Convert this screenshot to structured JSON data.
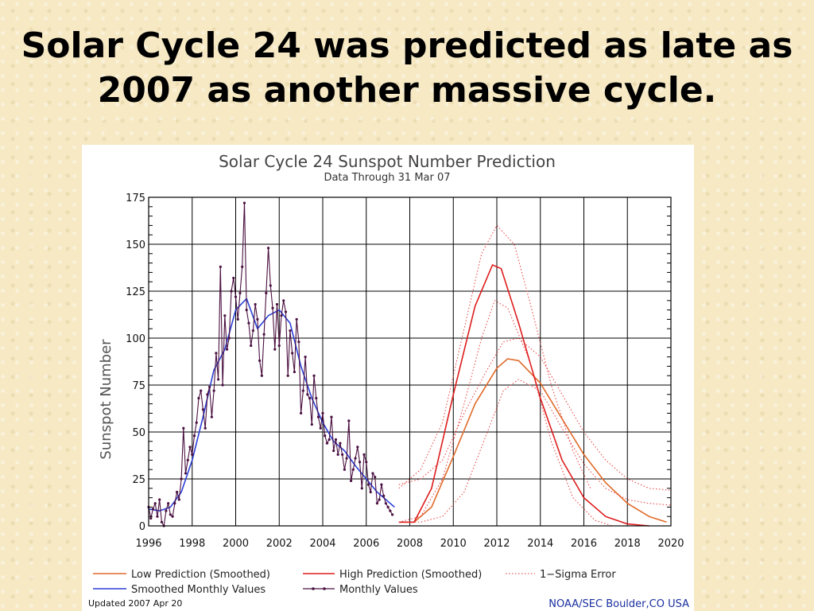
{
  "slide": {
    "title_line1": "Solar Cycle 24 was predicted as late as",
    "title_line2": "2007 as another massive cycle."
  },
  "chart_data": {
    "type": "line",
    "title": "Solar Cycle 24 Sunspot Number Prediction",
    "subtitle": "Data Through 31 Mar 07",
    "xlabel": "",
    "ylabel": "Sunspot Number",
    "xlim": [
      1996,
      2020
    ],
    "ylim": [
      0,
      175
    ],
    "x_ticks": [
      1996,
      1998,
      2000,
      2002,
      2004,
      2006,
      2008,
      2010,
      2012,
      2014,
      2016,
      2018,
      2020
    ],
    "y_ticks": [
      0,
      25,
      50,
      75,
      100,
      125,
      150,
      175
    ],
    "grid": true,
    "legend_position": "bottom",
    "footer_left": "Updated 2007 Apr 20",
    "footer_right": "NOAA/SEC Boulder,CO USA",
    "series": [
      {
        "name": "Low Prediction (Smoothed)",
        "color": "#e06a2a",
        "style": "solid",
        "x": [
          2007.5,
          2008.2,
          2009,
          2010,
          2011,
          2012,
          2012.5,
          2013,
          2014,
          2015,
          2016,
          2017,
          2018,
          2019,
          2019.8
        ],
        "y": [
          2,
          2,
          10,
          37,
          65,
          84,
          89,
          88,
          76,
          57,
          38,
          23,
          12,
          5,
          2
        ]
      },
      {
        "name": "High Prediction (Smoothed)",
        "color": "#dd1c1c",
        "style": "solid",
        "x": [
          2007.5,
          2008.2,
          2009,
          2010,
          2011,
          2011.8,
          2012.2,
          2013,
          2014,
          2015,
          2016,
          2017,
          2018,
          2019
        ],
        "y": [
          2,
          2,
          20,
          70,
          117,
          139,
          137,
          108,
          68,
          35,
          15,
          5,
          1,
          0
        ]
      },
      {
        "name": "1-Sigma Error (High upper)",
        "color": "#e83a3a",
        "style": "dotted",
        "x": [
          2007.5,
          2008.5,
          2009.5,
          2010.5,
          2011.3,
          2012,
          2012.8,
          2013.5,
          2014.5,
          2015.5,
          2016.3
        ],
        "y": [
          20,
          30,
          55,
          105,
          145,
          160,
          150,
          120,
          75,
          40,
          20
        ]
      },
      {
        "name": "1-Sigma Error (High lower)",
        "color": "#e83a3a",
        "style": "dotted",
        "x": [
          2007.5,
          2008.5,
          2009.5,
          2010.5,
          2011.3,
          2011.9,
          2012.5,
          2013.5,
          2014.5,
          2015.5,
          2016.5,
          2017.3
        ],
        "y": [
          2,
          5,
          25,
          65,
          100,
          120,
          116,
          88,
          45,
          15,
          3,
          0
        ]
      },
      {
        "name": "1-Sigma Error (Low upper)",
        "color": "#e83a3a",
        "style": "dotted",
        "x": [
          2007.5,
          2008.5,
          2009.5,
          2010.5,
          2011.5,
          2012.3,
          2013,
          2014,
          2015,
          2016,
          2017,
          2018,
          2019,
          2020
        ],
        "y": [
          22,
          25,
          35,
          60,
          82,
          98,
          100,
          90,
          70,
          50,
          35,
          25,
          20,
          19
        ]
      },
      {
        "name": "1-Sigma Error (Low lower)",
        "color": "#e83a3a",
        "style": "dotted",
        "x": [
          2007.5,
          2008.5,
          2009.5,
          2010.5,
          2011.5,
          2012.3,
          2013,
          2014,
          2015,
          2016,
          2017,
          2018,
          2019,
          2020
        ],
        "y": [
          2,
          2,
          5,
          18,
          48,
          72,
          78,
          72,
          52,
          33,
          20,
          14,
          12,
          11
        ]
      },
      {
        "name": "Smoothed Monthly Values",
        "color": "#2b3fd6",
        "style": "solid",
        "x": [
          1996,
          1996.5,
          1997,
          1997.5,
          1998,
          1998.5,
          1999,
          1999.5,
          2000,
          2000.5,
          2001,
          2001.5,
          2002,
          2002.5,
          2003,
          2003.5,
          2004,
          2004.5,
          2005,
          2005.5,
          2006,
          2006.5,
          2007,
          2007.3
        ],
        "y": [
          9,
          8,
          10,
          18,
          35,
          58,
          83,
          94,
          115,
          121,
          105,
          112,
          115,
          108,
          85,
          68,
          55,
          45,
          40,
          32,
          25,
          18,
          13,
          10
        ]
      },
      {
        "name": "Monthly Values",
        "color": "#4a1040",
        "style": "marker",
        "x": [
          1996,
          1996.1,
          1996.2,
          1996.3,
          1996.4,
          1996.5,
          1996.6,
          1996.7,
          1996.8,
          1996.9,
          1997,
          1997.1,
          1997.2,
          1997.3,
          1997.4,
          1997.5,
          1997.6,
          1997.7,
          1997.8,
          1997.9,
          1998,
          1998.1,
          1998.2,
          1998.3,
          1998.4,
          1998.5,
          1998.6,
          1998.7,
          1998.8,
          1998.9,
          1999,
          1999.1,
          1999.2,
          1999.3,
          1999.4,
          1999.5,
          1999.6,
          1999.7,
          1999.8,
          1999.9,
          2000,
          2000.1,
          2000.2,
          2000.3,
          2000.4,
          2000.5,
          2000.6,
          2000.7,
          2000.8,
          2000.9,
          2001,
          2001.1,
          2001.2,
          2001.3,
          2001.4,
          2001.5,
          2001.6,
          2001.7,
          2001.8,
          2001.9,
          2002,
          2002.1,
          2002.2,
          2002.3,
          2002.4,
          2002.5,
          2002.6,
          2002.7,
          2002.8,
          2002.9,
          2003,
          2003.1,
          2003.2,
          2003.3,
          2003.4,
          2003.5,
          2003.6,
          2003.7,
          2003.8,
          2003.9,
          2004,
          2004.1,
          2004.2,
          2004.3,
          2004.4,
          2004.5,
          2004.6,
          2004.7,
          2004.8,
          2004.9,
          2005,
          2005.1,
          2005.2,
          2005.3,
          2005.4,
          2005.5,
          2005.6,
          2005.7,
          2005.8,
          2005.9,
          2006,
          2006.1,
          2006.2,
          2006.3,
          2006.4,
          2006.5,
          2006.6,
          2006.7,
          2006.8,
          2006.9,
          2007,
          2007.1,
          2007.2
        ],
        "y": [
          10,
          4,
          9,
          12,
          5,
          14,
          2,
          0,
          8,
          12,
          6,
          5,
          12,
          18,
          14,
          25,
          52,
          28,
          35,
          42,
          38,
          48,
          55,
          68,
          72,
          62,
          52,
          70,
          74,
          58,
          72,
          92,
          78,
          138,
          75,
          112,
          94,
          100,
          125,
          132,
          122,
          110,
          124,
          138,
          172,
          115,
          108,
          96,
          104,
          118,
          110,
          88,
          80,
          102,
          124,
          148,
          128,
          116,
          94,
          118,
          96,
          112,
          120,
          114,
          80,
          104,
          92,
          82,
          110,
          98,
          60,
          72,
          90,
          70,
          68,
          54,
          80,
          68,
          58,
          52,
          60,
          48,
          44,
          46,
          58,
          40,
          46,
          38,
          44,
          38,
          30,
          36,
          56,
          24,
          30,
          36,
          42,
          34,
          20,
          38,
          34,
          22,
          18,
          28,
          26,
          12,
          14,
          22,
          16,
          12,
          10,
          8,
          6
        ]
      }
    ]
  },
  "legend": {
    "low": "Low Prediction (Smoothed)",
    "high": "High Prediction (Smoothed)",
    "sigma": "1−Sigma Error",
    "smoothed": "Smoothed Monthly Values",
    "monthly": "Monthly Values"
  }
}
